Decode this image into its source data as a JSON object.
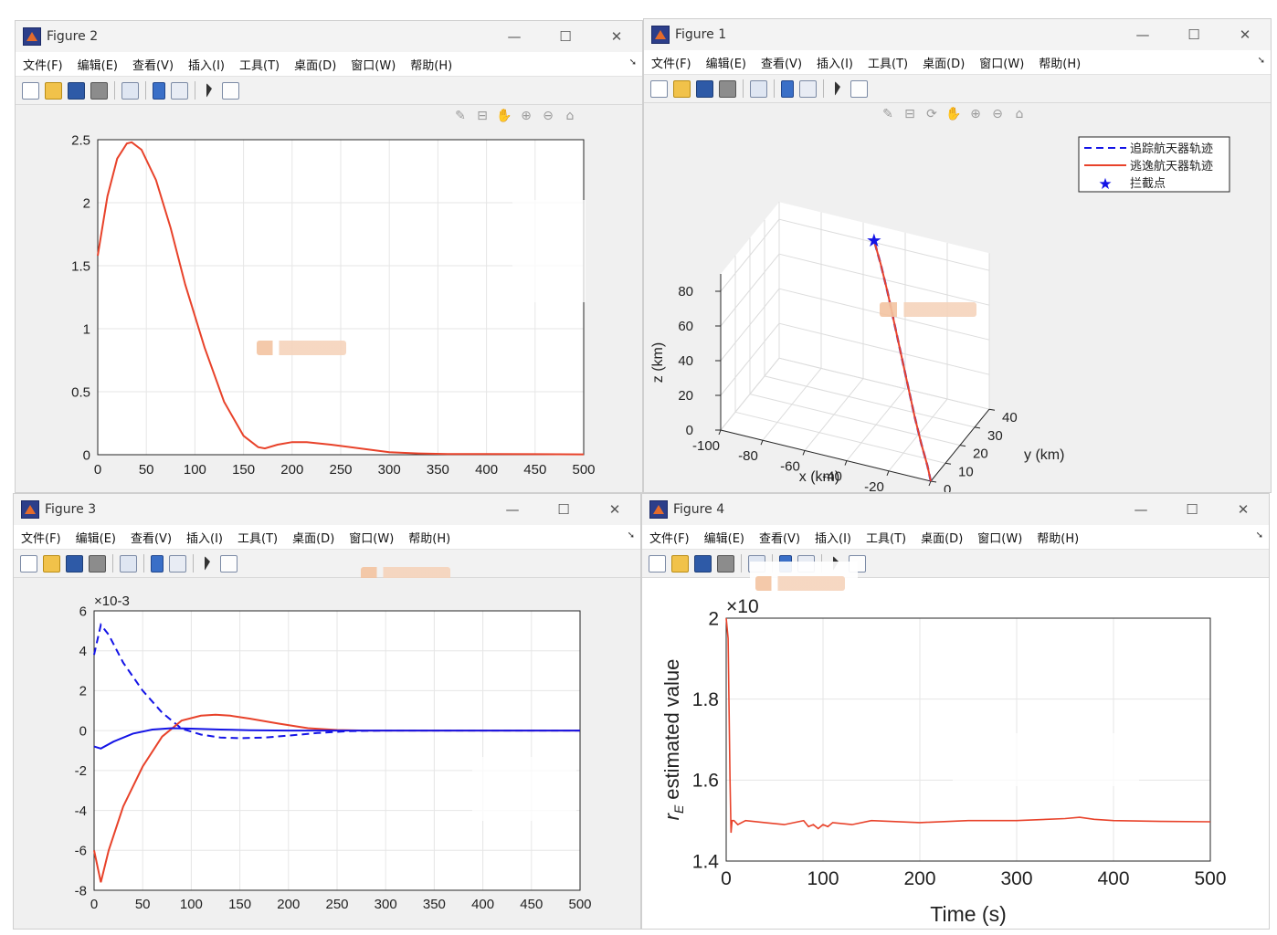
{
  "menu_items": [
    "文件(F)",
    "编辑(E)",
    "查看(V)",
    "插入(I)",
    "工具(T)",
    "桌面(D)",
    "窗口(W)",
    "帮助(H)"
  ],
  "win_controls": {
    "minimize": "—",
    "maximize": "☐",
    "close": "✕"
  },
  "axes_toolbar_icons": [
    "brush-icon",
    "datatip-icon",
    "rotate-icon",
    "pan-icon",
    "zoom-in-icon",
    "zoom-out-icon",
    "home-icon"
  ],
  "colors": {
    "red": "#e8422a",
    "blue": "#1414e6"
  },
  "figure2": {
    "title": "Figure 2",
    "chart_data": {
      "type": "line",
      "title": "",
      "xlabel": "",
      "ylabel": "",
      "xlim": [
        0,
        500
      ],
      "ylim": [
        0,
        2.5
      ],
      "xticks": [
        "0",
        "50",
        "100",
        "150",
        "200",
        "250",
        "300",
        "350",
        "400",
        "450",
        "500"
      ],
      "yticks": [
        "0",
        "0.5",
        "1",
        "1.5",
        "2",
        "2.5"
      ],
      "grid": true,
      "series": [
        {
          "color": "#e8422a",
          "style": "solid",
          "x": [
            0,
            10,
            20,
            30,
            35,
            45,
            60,
            75,
            90,
            110,
            130,
            150,
            165,
            172,
            185,
            200,
            215,
            240,
            270,
            300,
            330,
            360,
            400,
            450,
            500
          ],
          "y": [
            1.58,
            2.05,
            2.35,
            2.47,
            2.48,
            2.42,
            2.18,
            1.8,
            1.35,
            0.85,
            0.42,
            0.15,
            0.06,
            0.05,
            0.08,
            0.1,
            0.1,
            0.08,
            0.05,
            0.02,
            0.01,
            0.005,
            0.005,
            0.004,
            0.003
          ]
        }
      ]
    }
  },
  "figure1": {
    "title": "Figure 1",
    "chart_data": {
      "type": "line",
      "title": "",
      "xlabel": "x (km)",
      "ylabel": "y (km)",
      "zlabel": "z (km)",
      "xlim": [
        -100,
        0
      ],
      "ylim": [
        0,
        40
      ],
      "zlim": [
        0,
        80
      ],
      "xticks": [
        "-100",
        "-80",
        "-60",
        "-40",
        "-20",
        "0"
      ],
      "yticks": [
        "0",
        "10",
        "20",
        "30",
        "40"
      ],
      "zticks": [
        "0",
        "20",
        "40",
        "60",
        "80"
      ],
      "grid": true,
      "legend": "top-right",
      "series": [
        {
          "name": "追踪航天器轨迹",
          "color": "#1414e6",
          "style": "dashed",
          "x": [
            0,
            -3,
            -8,
            -14,
            -20,
            -26,
            -32,
            -38,
            -44,
            -50
          ],
          "y": [
            0,
            2,
            5,
            9,
            13,
            17,
            21,
            25,
            29,
            33
          ],
          "z": [
            0,
            6,
            14,
            24,
            36,
            48,
            60,
            72,
            82,
            90
          ]
        },
        {
          "name": "逃逸航天器轨迹",
          "color": "#e8422a",
          "style": "solid",
          "x": [
            0,
            -3,
            -8,
            -14,
            -20,
            -26,
            -32,
            -38,
            -44,
            -50
          ],
          "y": [
            0,
            2,
            5,
            9,
            13,
            17,
            21,
            25,
            29,
            33
          ],
          "z": [
            0,
            6,
            14,
            24,
            36,
            48,
            60,
            72,
            82,
            90
          ]
        },
        {
          "name": "拦截点",
          "color": "#1414e6",
          "style": "marker-star",
          "x": [
            -50
          ],
          "y": [
            33
          ],
          "z": [
            90
          ]
        }
      ]
    }
  },
  "figure3": {
    "title": "Figure 3",
    "chart_data": {
      "type": "line",
      "title": "",
      "xlabel": "",
      "ylabel": "",
      "exponent": "×10-3",
      "xlim": [
        0,
        500
      ],
      "ylim": [
        -8,
        6
      ],
      "xticks": [
        "0",
        "50",
        "100",
        "150",
        "200",
        "250",
        "300",
        "350",
        "400",
        "450",
        "500"
      ],
      "yticks": [
        "-8",
        "-6",
        "-4",
        "-2",
        "0",
        "2",
        "4",
        "6"
      ],
      "grid": true,
      "series": [
        {
          "color": "#1414e6",
          "style": "dashed",
          "x": [
            0,
            7,
            15,
            30,
            50,
            70,
            90,
            110,
            130,
            150,
            175,
            200,
            230,
            260,
            300,
            350,
            400,
            500
          ],
          "y": [
            3.8,
            5.3,
            4.8,
            3.4,
            2.0,
            0.9,
            0.1,
            -0.2,
            -0.35,
            -0.38,
            -0.35,
            -0.25,
            -0.12,
            -0.03,
            0,
            0,
            0,
            0
          ]
        },
        {
          "color": "#e8422a",
          "style": "solid",
          "x": [
            0,
            7,
            15,
            30,
            50,
            70,
            90,
            110,
            125,
            140,
            160,
            190,
            220,
            250,
            280,
            300,
            350,
            400,
            500
          ],
          "y": [
            -6.0,
            -7.6,
            -6.0,
            -3.8,
            -1.8,
            -0.3,
            0.5,
            0.75,
            0.8,
            0.75,
            0.6,
            0.35,
            0.12,
            0.03,
            0,
            0,
            0,
            0,
            0
          ]
        },
        {
          "color": "#1414e6",
          "style": "solid",
          "x": [
            0,
            7,
            20,
            40,
            60,
            80,
            100,
            130,
            160,
            200,
            250,
            300,
            400,
            500
          ],
          "y": [
            -0.8,
            -0.9,
            -0.55,
            -0.15,
            0.05,
            0.12,
            0.1,
            0.05,
            0.02,
            0,
            0,
            0,
            0,
            0
          ]
        }
      ]
    }
  },
  "figure4": {
    "title": "Figure 4",
    "chart_data": {
      "type": "line",
      "title": "",
      "xlabel": "Time (s)",
      "ylabel_symbol": "r",
      "ylabel_subscript": "E",
      "ylabel_text": "estimated value",
      "exponent": "×10",
      "xlim": [
        0,
        500
      ],
      "ylim": [
        1.4,
        2.0
      ],
      "xticks": [
        "0",
        "100",
        "200",
        "300",
        "400",
        "500"
      ],
      "yticks": [
        "1.4",
        "1.6",
        "1.8",
        "2"
      ],
      "grid": true,
      "series": [
        {
          "color": "#e8422a",
          "style": "solid",
          "x": [
            0,
            2,
            4,
            5,
            6,
            8,
            12,
            20,
            40,
            60,
            80,
            85,
            90,
            95,
            100,
            105,
            110,
            130,
            150,
            200,
            250,
            300,
            350,
            365,
            380,
            400,
            450,
            500
          ],
          "y": [
            2.0,
            1.95,
            1.6,
            1.47,
            1.5,
            1.5,
            1.49,
            1.5,
            1.495,
            1.49,
            1.5,
            1.485,
            1.49,
            1.48,
            1.49,
            1.485,
            1.495,
            1.49,
            1.5,
            1.495,
            1.5,
            1.5,
            1.505,
            1.508,
            1.503,
            1.5,
            1.498,
            1.497
          ]
        }
      ]
    }
  }
}
